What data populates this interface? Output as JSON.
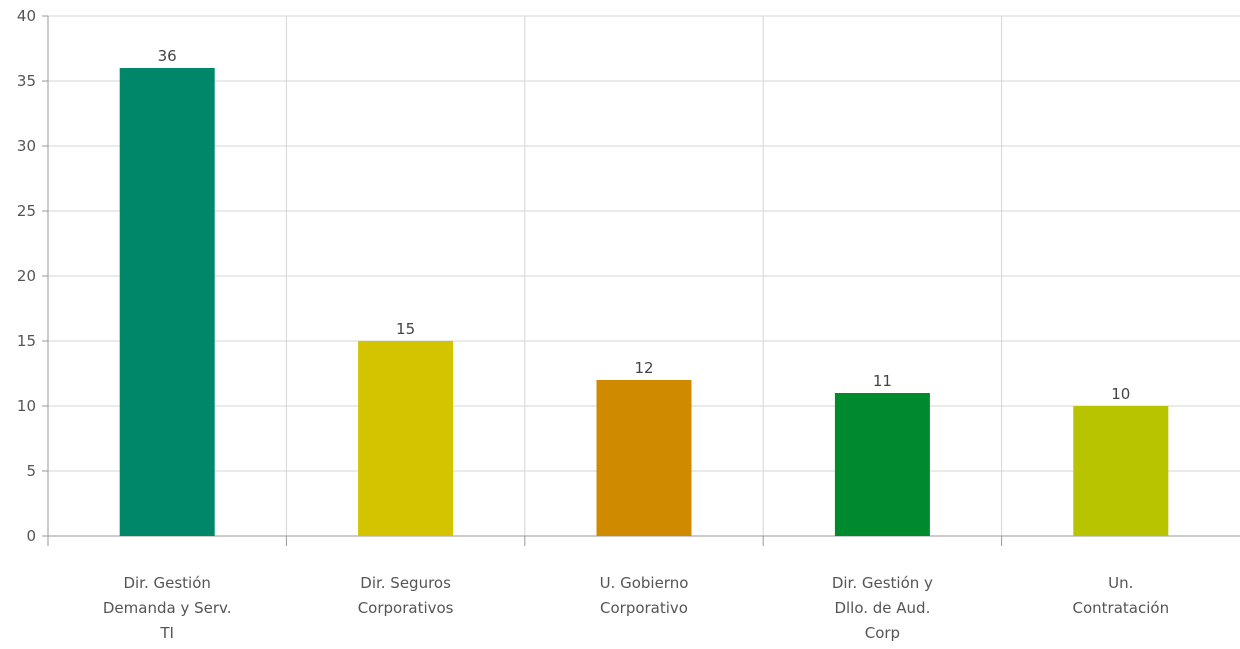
{
  "chart_data": {
    "type": "bar",
    "categories": [
      [
        "Dir. Gestión",
        "Demanda y Serv.",
        "TI"
      ],
      [
        "Dir. Seguros",
        "Corporativos"
      ],
      [
        "U. Gobierno",
        "Corporativo"
      ],
      [
        "Dir. Gestión y",
        "Dllo. de Aud.",
        "Corp"
      ],
      [
        "Un.",
        "Contratación"
      ]
    ],
    "values": [
      36,
      15,
      12,
      11,
      10
    ],
    "data_labels": [
      "36",
      "15",
      "12",
      "11",
      "10"
    ],
    "colors": [
      "#00876a",
      "#d4c400",
      "#d08a00",
      "#008a2e",
      "#b8c400"
    ],
    "ylim": [
      0,
      40
    ],
    "yticks": [
      0,
      5,
      10,
      15,
      20,
      25,
      30,
      35,
      40
    ],
    "grid": true,
    "title": "",
    "xlabel": "",
    "ylabel": ""
  }
}
